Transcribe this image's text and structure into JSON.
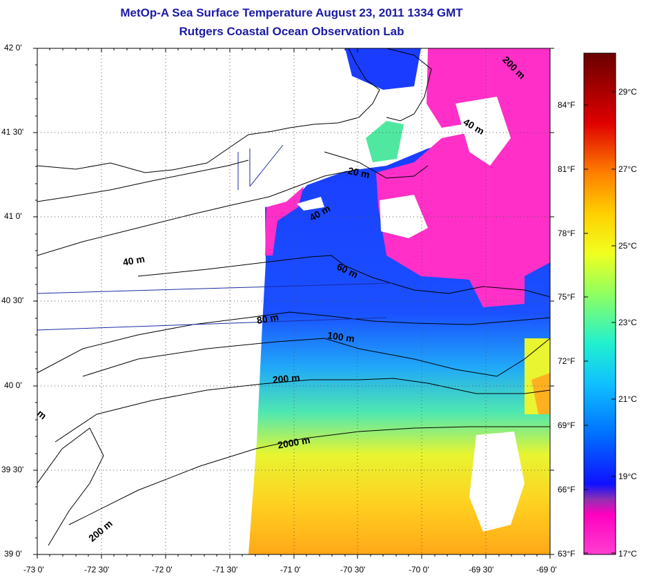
{
  "title": {
    "line1": "MetOp-A Sea Surface Temperature August 23, 2011 1334 GMT",
    "line2": "Rutgers Coastal Ocean Observation Lab"
  },
  "map": {
    "lat_labels": [
      "42 0'",
      "41 30'",
      "41 0'",
      "40 30'",
      "40 0'",
      "39 30'",
      "39 0'"
    ],
    "lon_labels": [
      "-73 0'",
      "-72 30'",
      "-72 0'",
      "-71 30'",
      "-71 0'",
      "-70 30'",
      "-70 0'",
      "-69 30'",
      "-69 0'"
    ],
    "lat_range": [
      39.0,
      42.0
    ],
    "lon_range": [
      -73.0,
      -69.0
    ],
    "grid": "dotted",
    "isobath_labels": [
      "200 m",
      "40 m",
      "20 m",
      "40 m",
      "40 m",
      "60 m",
      "80 m",
      "100 m",
      "200 m",
      "2000 m",
      "200 m",
      "m"
    ]
  },
  "colorbar": {
    "celsius_labels": [
      "29°C",
      "27°C",
      "25°C",
      "23°C",
      "21°C",
      "19°C",
      "17°C"
    ],
    "fahrenheit_labels": [
      "84°F",
      "81°F",
      "78°F",
      "75°F",
      "72°F",
      "69°F",
      "66°F",
      "63°F"
    ],
    "colors": [
      "#6a0000",
      "#e00000",
      "#ff7a00",
      "#ffd000",
      "#f0ff20",
      "#90ff60",
      "#20f0d0",
      "#10a0ff",
      "#0030ff",
      "#0000e0",
      "#7030c0",
      "#ff00c0",
      "#ff40d0"
    ]
  },
  "palette": {
    "land": "#ffffff",
    "cloud": "#ffffff",
    "cold": "#ff2fc8",
    "blue": "#1840ff",
    "cyan": "#30d0e8",
    "yellow": "#f0f020",
    "orange": "#ffb020",
    "coast": "#000000",
    "track": "#1a2aa0"
  }
}
